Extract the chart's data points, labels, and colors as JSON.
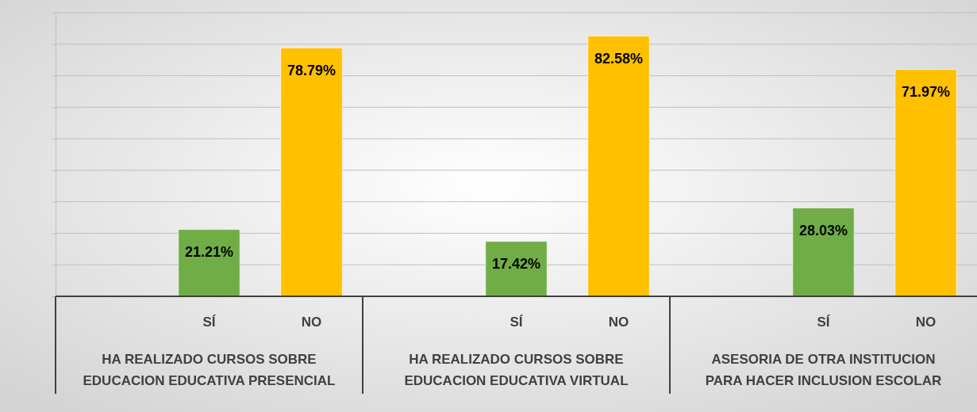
{
  "chart_data": {
    "type": "bar",
    "categories": [
      "HA REALIZADO CURSOS SOBRE EDUCACION EDUCATIVA PRESENCIAL",
      "HA REALIZADO CURSOS SOBRE EDUCACION EDUCATIVA VIRTUAL",
      "ASESORIA DE OTRA INSTITUCION PARA HACER INCLUSION ESCOLAR"
    ],
    "series": [
      {
        "name": "SÍ",
        "color": "#70ad47",
        "values": [
          21.21,
          17.42,
          28.03
        ],
        "value_labels": [
          "21.21%",
          "17.42%",
          "28.03%"
        ]
      },
      {
        "name": "NO",
        "color": "#ffc000",
        "values": [
          78.79,
          82.58,
          71.97
        ],
        "value_labels": [
          "78.79%",
          "82.58%",
          "71.97%"
        ]
      }
    ],
    "ylim": [
      0,
      90
    ],
    "yticks": [
      {
        "value": 0,
        "label": null
      },
      {
        "value": 10,
        "label": null
      },
      {
        "value": 20,
        "label": null
      },
      {
        "value": 30,
        "label": null
      },
      {
        "value": 40,
        "label": null
      },
      {
        "value": 50,
        "label": null
      },
      {
        "value": 60,
        "label": null
      },
      {
        "value": 70,
        "label": null
      },
      {
        "value": 80,
        "label": null
      },
      {
        "value": 90,
        "label": null
      }
    ],
    "grid": "y",
    "tick_labels": "x"
  }
}
